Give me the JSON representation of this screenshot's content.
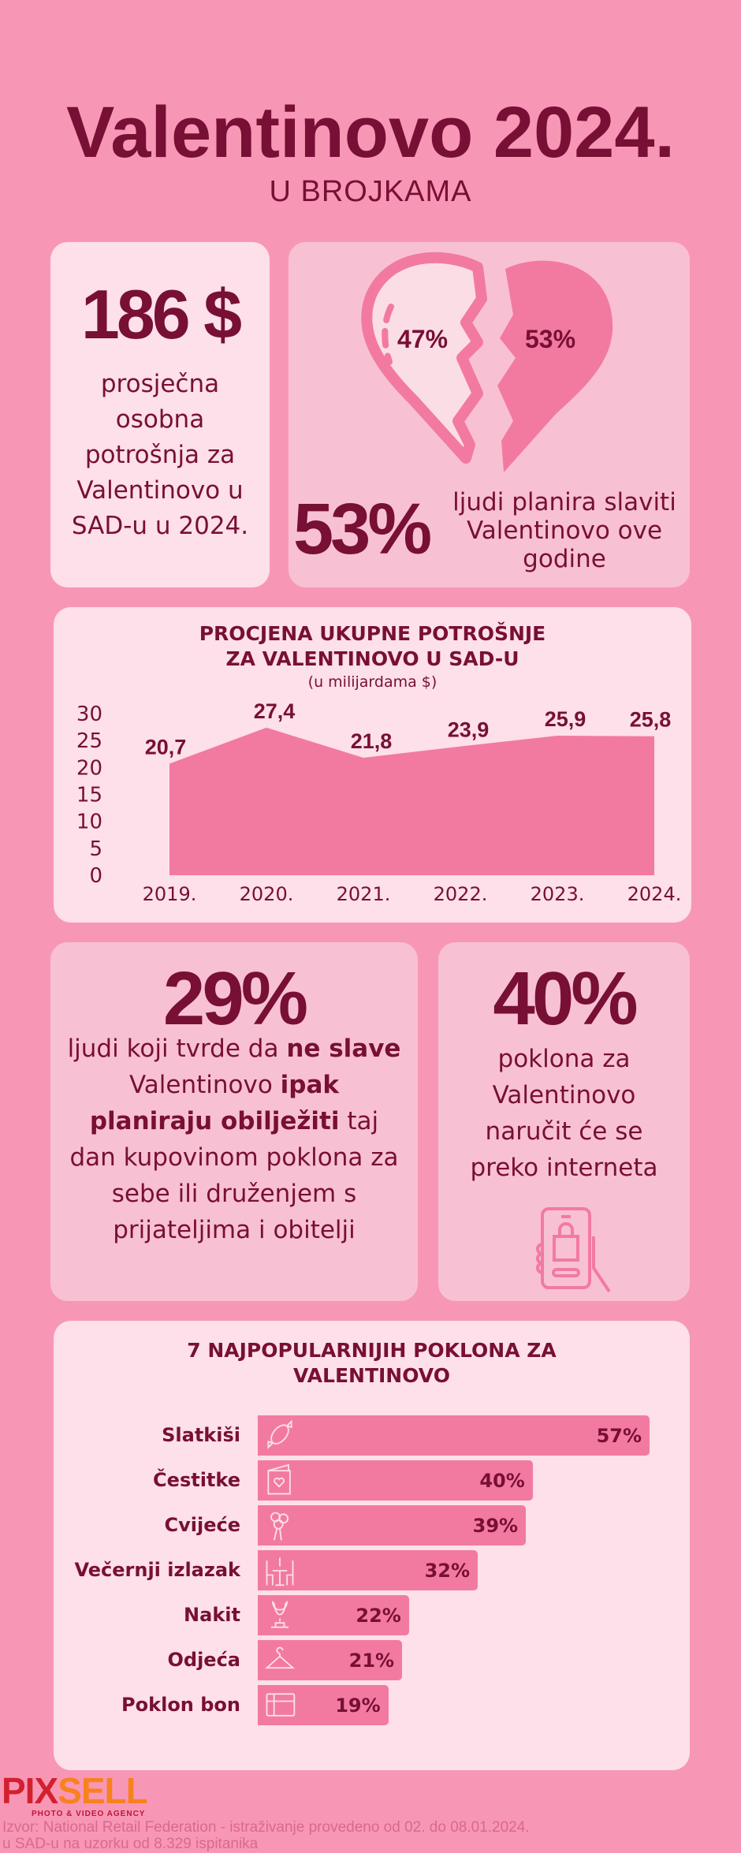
{
  "header": {
    "title": "Valentinovo 2024.",
    "subtitle": "U BROJKAMA"
  },
  "spending_card": {
    "value": "186 $",
    "text": "prosječna osobna potrošnja za Valentinovo u SAD-u u 2024."
  },
  "celebrate_card": {
    "heart_left": "47%",
    "heart_right": "53%",
    "value": "53%",
    "text": "ljudi planira slaviti Valentinovo ove godine"
  },
  "chart_data": [
    {
      "type": "area",
      "title": "PROCJENA UKUPNE POTROŠNJE ZA VALENTINOVO U SAD-U",
      "title_lines": [
        "PROCJENA UKUPNE POTROŠNJE",
        "ZA VALENTINOVO U SAD-U"
      ],
      "subtitle": "(u milijardama $)",
      "categories": [
        "2019.",
        "2020.",
        "2021.",
        "2022.",
        "2023.",
        "2024."
      ],
      "values": [
        20.7,
        27.4,
        21.8,
        23.9,
        25.9,
        25.8
      ],
      "value_labels": [
        "20,7",
        "27,4",
        "21,8",
        "23,9",
        "25,9",
        "25,8"
      ],
      "yticks": [
        "0",
        "5",
        "10",
        "15",
        "20",
        "25",
        "30"
      ],
      "ylim": [
        0,
        30
      ],
      "grid": false,
      "color": "#f27aa0"
    },
    {
      "type": "bar",
      "orientation": "horizontal",
      "title_lines": [
        "7 NAJPOPULARNIJIH POKLONA ZA",
        "VALENTINOVO"
      ],
      "categories": [
        "Slatkiši",
        "Čestitke",
        "Cvijeće",
        "Večernji izlazak",
        "Nakit",
        "Odjeća",
        "Poklon bon"
      ],
      "values": [
        57,
        40,
        39,
        32,
        22,
        21,
        19
      ],
      "value_labels": [
        "57%",
        "40%",
        "39%",
        "32%",
        "22%",
        "21%",
        "19%"
      ],
      "icons": [
        "candy-icon",
        "greeting-card-icon",
        "bouquet-icon",
        "dinner-table-icon",
        "necklace-icon",
        "hanger-icon",
        "gift-card-icon"
      ],
      "color": "#f27aa0"
    }
  ],
  "not_celebrating_card": {
    "value": "29%",
    "segments": [
      {
        "t": "ljudi koji tvrde da ",
        "b": false
      },
      {
        "t": "ne slave",
        "b": true
      },
      {
        "t": " Valentinovo ",
        "b": false
      },
      {
        "t": "ipak planiraju obilježiti",
        "b": true
      },
      {
        "t": " taj dan kupovinom poklona za sebe ili druženjem s prijateljima i obitelji",
        "b": false
      }
    ]
  },
  "online_card": {
    "value": "40%",
    "text": "poklona za Valentinovo naručit će se preko interneta",
    "icon": "phone-shopping-icon"
  },
  "footer": {
    "logo": "PIXSELL",
    "logo_sub": "PHOTO & VIDEO AGENCY",
    "source_line1": "Izvor: National Retail Federation - istraživanje provedeno od 02. do 08.01.2024.",
    "source_line2": "u SAD-u na uzorku od 8.329 ispitanika"
  },
  "colors": {
    "background": "#f897b5",
    "dark": "#780f35",
    "accent": "#f27aa0",
    "card_light": "#fde0e9",
    "card_mid": "#f8c1d3"
  }
}
